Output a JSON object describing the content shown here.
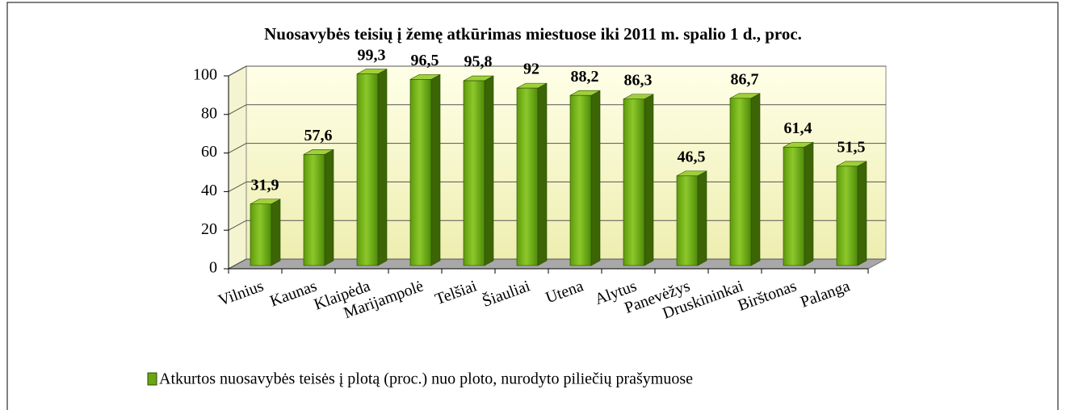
{
  "chart_data": {
    "type": "bar3d",
    "title": "Nuosavybės teisių į žemę atkūrimas miestuose iki 2011 m. spalio 1 d., proc.",
    "categories": [
      "Vilnius",
      "Kaunas",
      "Klaipėda",
      "Marijampolė",
      "Telšiai",
      "Šiauliai",
      "Utena",
      "Alytus",
      "Panevėžys",
      "Druskininkai",
      "Birštonas",
      "Palanga"
    ],
    "series": [
      {
        "name": "Atkurtos nuosavybės teisės į plotą (proc.) nuo ploto, nurodyto piliečių prašymuose",
        "color": "#6aa514",
        "values": [
          31.9,
          57.6,
          99.3,
          96.5,
          95.8,
          92,
          88.2,
          86.3,
          46.5,
          86.7,
          61.4,
          51.5
        ],
        "value_labels": [
          "31,9",
          "57,6",
          "99,3",
          "96,5",
          "95,8",
          "92",
          "88,2",
          "86,3",
          "46,5",
          "86,7",
          "61,4",
          "51,5"
        ]
      }
    ],
    "ylim": [
      0,
      100
    ],
    "yticks": [
      0,
      20,
      40,
      60,
      80,
      100
    ],
    "grid": true,
    "legend": "bottom"
  }
}
